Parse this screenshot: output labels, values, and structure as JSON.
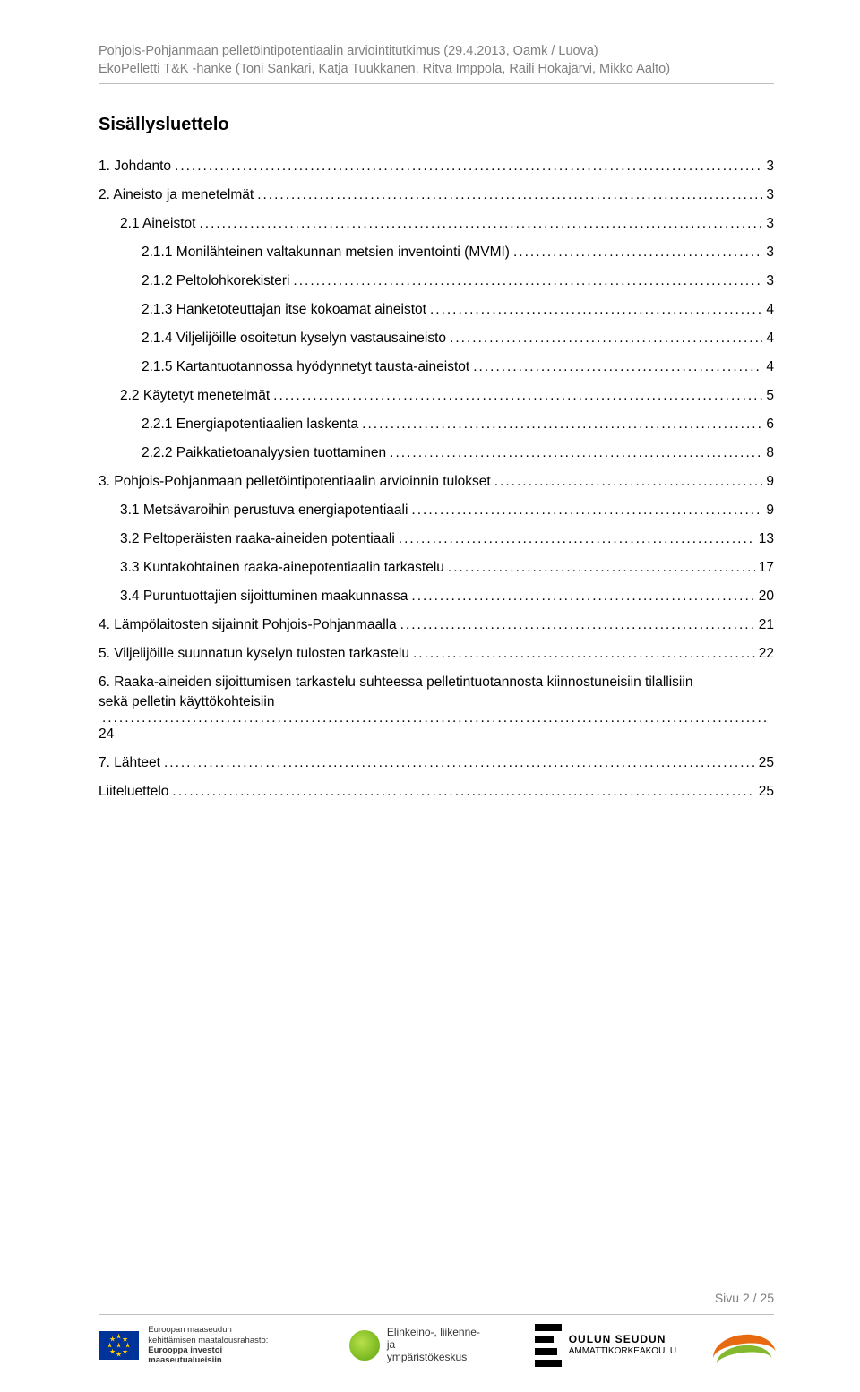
{
  "header": {
    "line1": "Pohjois-Pohjanmaan pelletöintipotentiaalin arviointitutkimus (29.4.2013, Oamk / Luova)",
    "line2": "EkoPelletti T&K -hanke (Toni Sankari, Katja Tuukkanen, Ritva Imppola, Raili Hokajärvi, Mikko Aalto)"
  },
  "title": "Sisällysluettelo",
  "toc": [
    {
      "indent": 0,
      "label": "1. Johdanto",
      "page": "3"
    },
    {
      "indent": 0,
      "label": "2. Aineisto ja menetelmät",
      "page": "3"
    },
    {
      "indent": 1,
      "label": "2.1 Aineistot",
      "page": "3"
    },
    {
      "indent": 2,
      "label": "2.1.1 Monilähteinen valtakunnan metsien inventointi (MVMI)",
      "page": "3"
    },
    {
      "indent": 2,
      "label": "2.1.2 Peltolohkorekisteri",
      "page": "3"
    },
    {
      "indent": 2,
      "label": "2.1.3 Hanketoteuttajan itse kokoamat aineistot",
      "page": "4"
    },
    {
      "indent": 2,
      "label": "2.1.4 Viljelijöille osoitetun kyselyn vastausaineisto",
      "page": "4"
    },
    {
      "indent": 2,
      "label": "2.1.5 Kartantuotannossa hyödynnetyt tausta-aineistot",
      "page": "4"
    },
    {
      "indent": 1,
      "label": "2.2 Käytetyt menetelmät",
      "page": "5"
    },
    {
      "indent": 2,
      "label": "2.2.1 Energiapotentiaalien laskenta",
      "page": "6"
    },
    {
      "indent": 2,
      "label": "2.2.2 Paikkatietoanalyysien tuottaminen",
      "page": "8"
    },
    {
      "indent": 0,
      "label": "3. Pohjois-Pohjanmaan pelletöintipotentiaalin arvioinnin tulokset",
      "page": "9"
    },
    {
      "indent": 1,
      "label": "3.1 Metsävaroihin perustuva energiapotentiaali",
      "page": "9"
    },
    {
      "indent": 1,
      "label": "3.2 Peltoperäisten raaka-aineiden potentiaali",
      "page": "13"
    },
    {
      "indent": 1,
      "label": "3.3 Kuntakohtainen raaka-ainepotentiaalin tarkastelu",
      "page": "17"
    },
    {
      "indent": 1,
      "label": "3.4 Puruntuottajien sijoittuminen maakunnassa",
      "page": "20"
    },
    {
      "indent": 0,
      "label": "4. Lämpölaitosten sijainnit Pohjois-Pohjanmaalla",
      "page": "21"
    },
    {
      "indent": 0,
      "label": "5. Viljelijöille suunnatun kyselyn tulosten tarkastelu",
      "page": "22"
    },
    {
      "indent": 0,
      "wrap": true,
      "label_line1": "6. Raaka-aineiden sijoittumisen tarkastelu suhteessa pelletintuotannosta kiinnostuneisiin tilallisiin",
      "label_line2": "sekä pelletin käyttökohteisiin",
      "page": "24"
    },
    {
      "indent": 0,
      "label": "7. Lähteet",
      "page": "25"
    },
    {
      "indent": 0,
      "label": "Liiteluettelo",
      "page": "25"
    }
  ],
  "footer": {
    "page_label": "Sivu 2 / 25",
    "eu": {
      "line1": "Euroopan maaseudun",
      "line2": "kehittämisen maatalousrahasto:",
      "line3": "Eurooppa investoi maaseutualueisiin"
    },
    "ely": {
      "line1": "Elinkeino-, liikenne- ja",
      "line2": "ympäristökeskus"
    },
    "oamk": {
      "line1": "OULUN SEUDUN",
      "line2": "AMMATTIKORKEAKOULU"
    }
  }
}
